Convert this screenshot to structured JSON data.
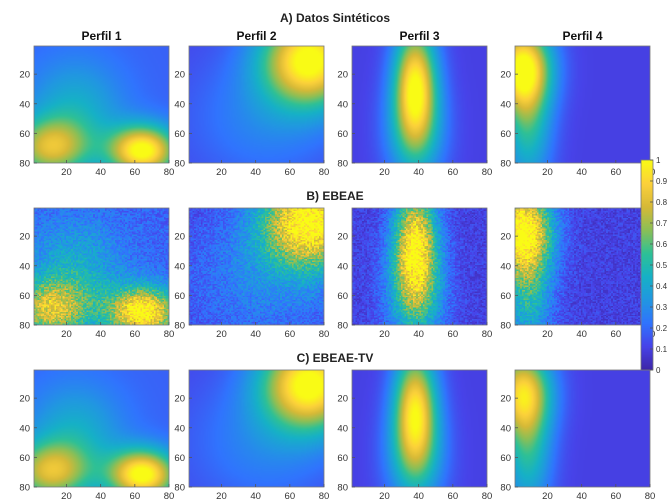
{
  "figure": {
    "colormap": [
      "#3e26a8",
      "#4743e9",
      "#3074fe",
      "#2197e1",
      "#16b1c6",
      "#2ec096",
      "#8bbf56",
      "#d6b937",
      "#fcd13a",
      "#f9fb15"
    ]
  },
  "chart_data": [
    {
      "type": "heatmap",
      "row": "A) Datos Sintéticos",
      "panels": [
        {
          "title": "Perfil 1",
          "noise": 0,
          "blobs": [
            [
              65,
              72,
              14,
              12,
              0.85
            ],
            [
              10,
              70,
              16,
              14,
              0.55
            ],
            [
              25,
              45,
              20,
              25,
              0.25
            ]
          ],
          "base": 0.18,
          "xticks": [
            20,
            40,
            60,
            80
          ],
          "yticks": [
            20,
            40,
            60,
            80
          ],
          "xlim": [
            1,
            80
          ],
          "ylim": [
            1,
            80
          ]
        },
        {
          "title": "Perfil 2",
          "noise": 0,
          "blobs": [
            [
              72,
              10,
              20,
              22,
              0.9
            ],
            [
              45,
              50,
              30,
              30,
              0.15
            ]
          ],
          "base": 0.12,
          "xticks": [
            20,
            40,
            60,
            80
          ],
          "yticks": [
            20,
            40,
            60,
            80
          ],
          "xlim": [
            1,
            80
          ],
          "ylim": [
            1,
            80
          ]
        },
        {
          "title": "Perfil 3",
          "noise": 0,
          "blobs": [
            [
              38,
              25,
              9,
              28,
              0.8
            ],
            [
              38,
              60,
              12,
              25,
              0.35
            ]
          ],
          "base": 0.1,
          "xticks": [
            20,
            40,
            60,
            80
          ],
          "yticks": [
            20,
            40,
            60,
            80
          ],
          "xlim": [
            1,
            80
          ],
          "ylim": [
            1,
            80
          ]
        },
        {
          "title": "Perfil 4",
          "noise": 0,
          "blobs": [
            [
              5,
              15,
              12,
              20,
              0.85
            ],
            [
              8,
              55,
              10,
              30,
              0.4
            ]
          ],
          "base": 0.1,
          "xticks": [
            20,
            40,
            60,
            80
          ],
          "yticks": [
            20,
            40,
            60,
            80
          ],
          "xlim": [
            1,
            80
          ],
          "ylim": [
            1,
            80
          ]
        }
      ]
    },
    {
      "type": "heatmap",
      "row": "B) EBEAE",
      "panels": [
        {
          "noise": 0.12,
          "blobs": [
            [
              65,
              72,
              14,
              12,
              0.85
            ],
            [
              10,
              70,
              16,
              14,
              0.55
            ],
            [
              25,
              45,
              20,
              25,
              0.25
            ]
          ],
          "base": 0.18,
          "xticks": [
            20,
            40,
            60,
            80
          ],
          "yticks": [
            20,
            40,
            60,
            80
          ],
          "xlim": [
            1,
            80
          ],
          "ylim": [
            1,
            80
          ]
        },
        {
          "noise": 0.12,
          "blobs": [
            [
              72,
              10,
              20,
              22,
              0.9
            ],
            [
              45,
              50,
              30,
              30,
              0.15
            ]
          ],
          "base": 0.12,
          "xticks": [
            20,
            40,
            60,
            80
          ],
          "yticks": [
            20,
            40,
            60,
            80
          ],
          "xlim": [
            1,
            80
          ],
          "ylim": [
            1,
            80
          ]
        },
        {
          "noise": 0.12,
          "blobs": [
            [
              38,
              25,
              9,
              28,
              0.8
            ],
            [
              38,
              60,
              12,
              25,
              0.35
            ]
          ],
          "base": 0.1,
          "xticks": [
            20,
            40,
            60,
            80
          ],
          "yticks": [
            20,
            40,
            60,
            80
          ],
          "xlim": [
            1,
            80
          ],
          "ylim": [
            1,
            80
          ]
        },
        {
          "noise": 0.12,
          "blobs": [
            [
              5,
              15,
              12,
              20,
              0.85
            ],
            [
              8,
              55,
              10,
              30,
              0.4
            ]
          ],
          "base": 0.1,
          "xticks": [
            20,
            40,
            60,
            80
          ],
          "yticks": [
            20,
            40,
            60,
            80
          ],
          "xlim": [
            1,
            80
          ],
          "ylim": [
            1,
            80
          ]
        }
      ]
    },
    {
      "type": "heatmap",
      "row": "C) EBEAE-TV",
      "panels": [
        {
          "noise": 0,
          "blobs": [
            [
              65,
              72,
              14,
              12,
              0.85
            ],
            [
              10,
              70,
              16,
              14,
              0.55
            ],
            [
              25,
              45,
              20,
              25,
              0.25
            ]
          ],
          "base": 0.18,
          "xticks": [
            20,
            40,
            60,
            80
          ],
          "yticks": [
            20,
            40,
            60,
            80
          ],
          "xlim": [
            1,
            80
          ],
          "ylim": [
            1,
            80
          ]
        },
        {
          "noise": 0,
          "blobs": [
            [
              72,
              10,
              20,
              22,
              0.9
            ],
            [
              45,
              50,
              30,
              30,
              0.15
            ]
          ],
          "base": 0.12,
          "xticks": [
            20,
            40,
            60,
            80
          ],
          "yticks": [
            20,
            40,
            60,
            80
          ],
          "xlim": [
            1,
            80
          ],
          "ylim": [
            1,
            80
          ]
        },
        {
          "noise": 0,
          "blobs": [
            [
              38,
              25,
              9,
              28,
              0.75
            ],
            [
              38,
              60,
              12,
              25,
              0.35
            ]
          ],
          "base": 0.1,
          "xticks": [
            20,
            40,
            60,
            80
          ],
          "yticks": [
            20,
            40,
            60,
            80
          ],
          "xlim": [
            1,
            80
          ],
          "ylim": [
            1,
            80
          ]
        },
        {
          "noise": 0,
          "blobs": [
            [
              5,
              15,
              12,
              20,
              0.7
            ],
            [
              8,
              55,
              10,
              30,
              0.4
            ]
          ],
          "base": 0.1,
          "xticks": [
            20,
            40,
            60,
            80
          ],
          "yticks": [
            20,
            40,
            60,
            80
          ],
          "xlim": [
            1,
            80
          ],
          "ylim": [
            1,
            80
          ]
        }
      ]
    },
    {
      "type": "colorbar",
      "range": [
        0,
        1
      ],
      "tick_labels": [
        "0",
        "0.1",
        "0.2",
        "0.3",
        "0.4",
        "0.5",
        "0.6",
        "0.7",
        "0.8",
        "0.9",
        "1"
      ]
    }
  ]
}
